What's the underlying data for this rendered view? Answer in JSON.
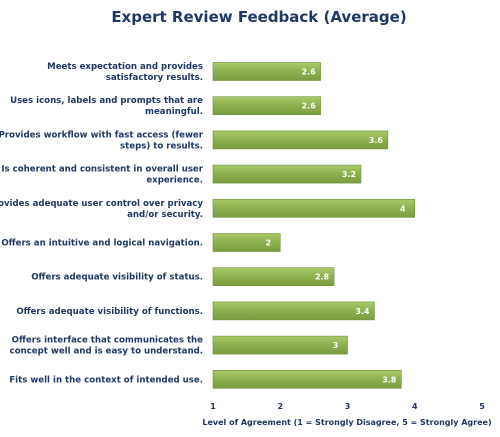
{
  "chart_data": {
    "type": "bar",
    "orientation": "horizontal",
    "title": "Expert Review Feedback (Average)",
    "xlabel": "Level of Agreement (1 = Strongly Disagree, 5 = Strongly Agree)",
    "ylabel": "",
    "xlim": [
      1,
      5
    ],
    "ticks": [
      "1",
      "2",
      "3",
      "4",
      "5"
    ],
    "grid": false,
    "bar_color": "#8db04e",
    "bar_edge_color": "#6e8f38",
    "text_color": "#1f3864",
    "categories": [
      [
        "Meets expectation and provides",
        "satisfactory results."
      ],
      [
        "Uses icons, labels and prompts that are",
        "meaningful."
      ],
      [
        "Provides workflow with fast access (fewer",
        "steps) to results."
      ],
      [
        "Is coherent and consistent in overall user",
        "experience."
      ],
      [
        "Provides adequate user control over privacy",
        "and/or security."
      ],
      [
        "Offers an intuitive and logical navigation."
      ],
      [
        "Offers adequate visibility of status."
      ],
      [
        "Offers adequate visibility of functions."
      ],
      [
        "Offers interface that communicates the",
        "concept well and is easy to understand."
      ],
      [
        "Fits well in the context of intended use."
      ]
    ],
    "values": [
      2.6,
      2.6,
      3.6,
      3.2,
      4,
      2,
      2.8,
      3.4,
      3,
      3.8
    ],
    "value_labels": [
      "2.6",
      "2.6",
      "3.6",
      "3.2",
      "4",
      "2",
      "2.8",
      "3.4",
      "3",
      "3.8"
    ]
  }
}
